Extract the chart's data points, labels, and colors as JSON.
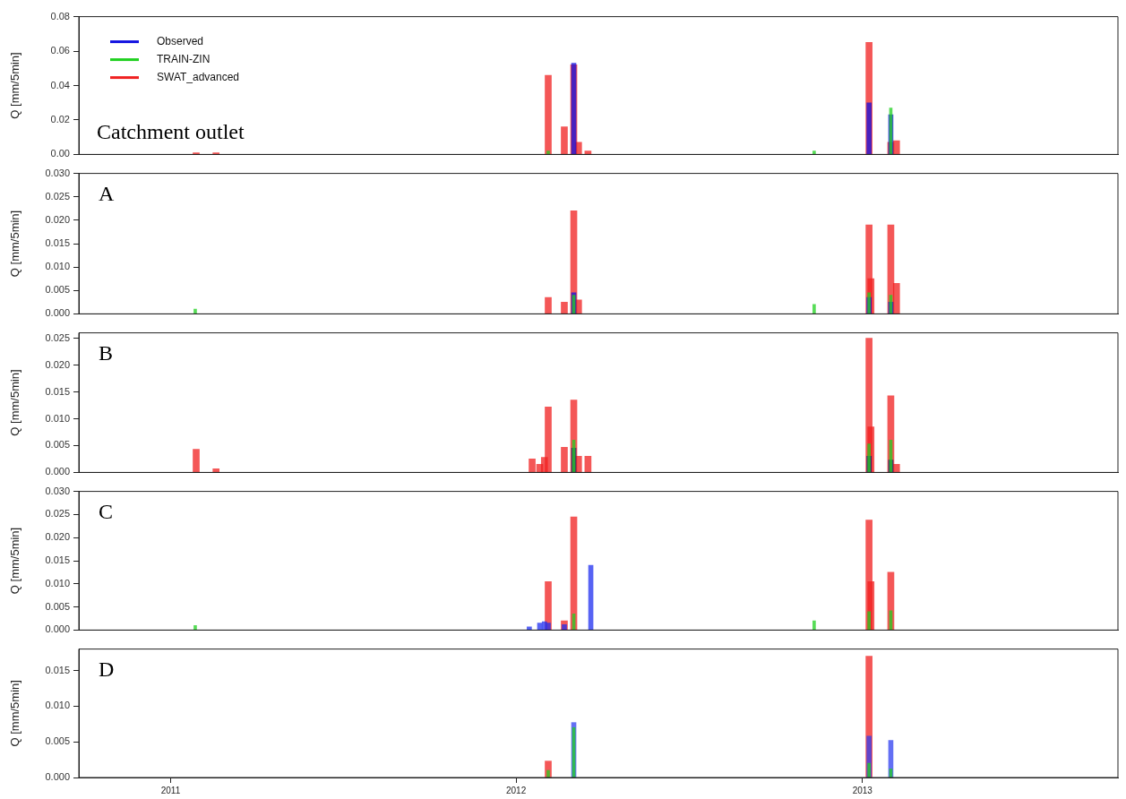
{
  "chart_data": [
    {
      "type": "bar",
      "title": "Catchment outlet",
      "ylabel": "Q [mm/5min]",
      "xlim": [
        "2010-09-26",
        "2013-09-28"
      ],
      "xticks": [
        "2011",
        "2012",
        "2013"
      ],
      "ylim": [
        0,
        0.08
      ],
      "yticks": [
        {
          "value": 0,
          "label": "0.00"
        },
        {
          "value": 0.02,
          "label": "0.02"
        },
        {
          "value": 0.04,
          "label": "0.04"
        },
        {
          "value": 0.06,
          "label": "0.06"
        },
        {
          "value": 0.08,
          "label": "0.08"
        }
      ],
      "tick_labels": "y",
      "legend": "top left",
      "series": [
        {
          "name": "Observed",
          "color": "#1010e0",
          "x": [
            "2012-03-02",
            "2013-01-08",
            "2013-01-31"
          ],
          "values": [
            0.053,
            0.03,
            0.023
          ]
        },
        {
          "name": "TRAIN-ZIN",
          "color": "#20d020",
          "x": [
            "2012-02-04",
            "2012-11-11",
            "2013-01-31"
          ],
          "values": [
            0.002,
            0.002,
            0.027
          ]
        },
        {
          "name": "SWAT_advanced",
          "color": "#f02020",
          "x": [
            "2011-01-28",
            "2011-02-18",
            "2012-02-04",
            "2012-02-21",
            "2012-03-02",
            "2012-03-07",
            "2012-03-17",
            "2013-01-08",
            "2013-01-31",
            "2013-02-06"
          ],
          "values": [
            0.001,
            0.001,
            0.046,
            0.016,
            0.052,
            0.007,
            0.002,
            0.065,
            0.007,
            0.008
          ]
        }
      ]
    },
    {
      "type": "bar",
      "title": "A",
      "ylabel": "Q [mm/5min]",
      "xlim": [
        "2010-09-26",
        "2013-09-28"
      ],
      "xticks": [
        "2011",
        "2012",
        "2013"
      ],
      "ylim": [
        0,
        0.03
      ],
      "yticks": [
        {
          "value": 0,
          "label": "0.000"
        },
        {
          "value": 0.005,
          "label": "0.005"
        },
        {
          "value": 0.01,
          "label": "0.010"
        },
        {
          "value": 0.015,
          "label": "0.015"
        },
        {
          "value": 0.02,
          "label": "0.020"
        },
        {
          "value": 0.025,
          "label": "0.025"
        },
        {
          "value": 0.03,
          "label": "0.030"
        }
      ],
      "tick_labels": "y",
      "series": [
        {
          "color": "#1010e0",
          "x": [
            "2012-03-02",
            "2013-01-08",
            "2013-01-31"
          ],
          "values": [
            0.0045,
            0.0035,
            0.0025
          ]
        },
        {
          "color": "#20d020",
          "x": [
            "2011-01-27",
            "2012-03-02",
            "2012-11-11",
            "2013-01-08",
            "2013-01-31"
          ],
          "values": [
            0.001,
            0.004,
            0.002,
            0.0045,
            0.004
          ]
        },
        {
          "color": "#f02020",
          "x": [
            "2012-02-04",
            "2012-02-21",
            "2012-03-02",
            "2012-03-07",
            "2013-01-08",
            "2013-01-10",
            "2013-01-31",
            "2013-02-06"
          ],
          "values": [
            0.0035,
            0.0025,
            0.022,
            0.003,
            0.019,
            0.0075,
            0.019,
            0.0065
          ]
        }
      ]
    },
    {
      "type": "bar",
      "title": "B",
      "ylabel": "Q [mm/5min]",
      "xlim": [
        "2010-09-26",
        "2013-09-28"
      ],
      "xticks": [
        "2011",
        "2012",
        "2013"
      ],
      "ylim": [
        0,
        0.026
      ],
      "yticks": [
        {
          "value": 0,
          "label": "0.000"
        },
        {
          "value": 0.005,
          "label": "0.005"
        },
        {
          "value": 0.01,
          "label": "0.010"
        },
        {
          "value": 0.015,
          "label": "0.015"
        },
        {
          "value": 0.02,
          "label": "0.020"
        },
        {
          "value": 0.025,
          "label": "0.025"
        }
      ],
      "tick_labels": "y",
      "series": [
        {
          "color": "#101880",
          "x": [
            "2012-03-02",
            "2013-01-08",
            "2013-01-31"
          ],
          "values": [
            0.0045,
            0.003,
            0.0023
          ]
        },
        {
          "color": "#20d020",
          "x": [
            "2012-03-02",
            "2013-01-08",
            "2013-01-31"
          ],
          "values": [
            0.006,
            0.0053,
            0.006
          ]
        },
        {
          "color": "#f02020",
          "x": [
            "2011-01-28",
            "2011-02-18",
            "2012-01-18",
            "2012-01-26",
            "2012-01-31",
            "2012-02-04",
            "2012-02-21",
            "2012-03-02",
            "2012-03-07",
            "2012-03-17",
            "2013-01-08",
            "2013-01-10",
            "2013-01-31",
            "2013-02-06"
          ],
          "values": [
            0.0043,
            0.0007,
            0.0025,
            0.0015,
            0.0028,
            0.0122,
            0.0047,
            0.0135,
            0.003,
            0.003,
            0.025,
            0.0085,
            0.0143,
            0.0015
          ]
        }
      ]
    },
    {
      "type": "bar",
      "title": "C",
      "ylabel": "Q [mm/5min]",
      "xlim": [
        "2010-09-26",
        "2013-09-28"
      ],
      "xticks": [
        "2011",
        "2012",
        "2013"
      ],
      "ylim": [
        0,
        0.03
      ],
      "yticks": [
        {
          "value": 0,
          "label": "0.000"
        },
        {
          "value": 0.005,
          "label": "0.005"
        },
        {
          "value": 0.01,
          "label": "0.010"
        },
        {
          "value": 0.015,
          "label": "0.015"
        },
        {
          "value": 0.02,
          "label": "0.020"
        },
        {
          "value": 0.025,
          "label": "0.025"
        },
        {
          "value": 0.03,
          "label": "0.030"
        }
      ],
      "tick_labels": "y",
      "series": [
        {
          "color": "#2030f0",
          "x": [
            "2012-01-15",
            "2012-01-26",
            "2012-01-31",
            "2012-02-04",
            "2012-02-21",
            "2012-03-20"
          ],
          "values": [
            0.0007,
            0.0015,
            0.0018,
            0.0015,
            0.0012,
            0.014
          ]
        },
        {
          "color": "#20d020",
          "x": [
            "2011-01-27",
            "2012-03-02",
            "2012-11-11",
            "2013-01-08",
            "2013-01-31"
          ],
          "values": [
            0.001,
            0.0035,
            0.002,
            0.004,
            0.0042
          ]
        },
        {
          "color": "#f02020",
          "x": [
            "2012-02-04",
            "2012-02-21",
            "2012-03-02",
            "2013-01-08",
            "2013-01-10",
            "2013-01-31"
          ],
          "values": [
            0.0105,
            0.002,
            0.0245,
            0.0238,
            0.0105,
            0.0125
          ]
        }
      ]
    },
    {
      "type": "bar",
      "title": "D",
      "ylabel": "Q [mm/5min]",
      "xlim": [
        "2010-09-26",
        "2013-09-28"
      ],
      "xticks": [
        "2011",
        "2012",
        "2013"
      ],
      "ylim": [
        0,
        0.018
      ],
      "yticks": [
        {
          "value": 0,
          "label": "0.000"
        },
        {
          "value": 0.005,
          "label": "0.005"
        },
        {
          "value": 0.01,
          "label": "0.010"
        },
        {
          "value": 0.015,
          "label": "0.015"
        }
      ],
      "series": [
        {
          "color": "#3040f0",
          "x": [
            "2012-03-02",
            "2013-01-08",
            "2013-01-31"
          ],
          "values": [
            0.0077,
            0.0058,
            0.0052
          ]
        },
        {
          "color": "#20d020",
          "x": [
            "2012-02-04",
            "2012-03-02",
            "2013-01-08",
            "2013-01-31"
          ],
          "values": [
            0.001,
            0.007,
            0.002,
            0.0012
          ]
        },
        {
          "color": "#f02020",
          "x": [
            "2012-02-04",
            "2013-01-08"
          ],
          "values": [
            0.0023,
            0.017
          ]
        }
      ]
    }
  ]
}
